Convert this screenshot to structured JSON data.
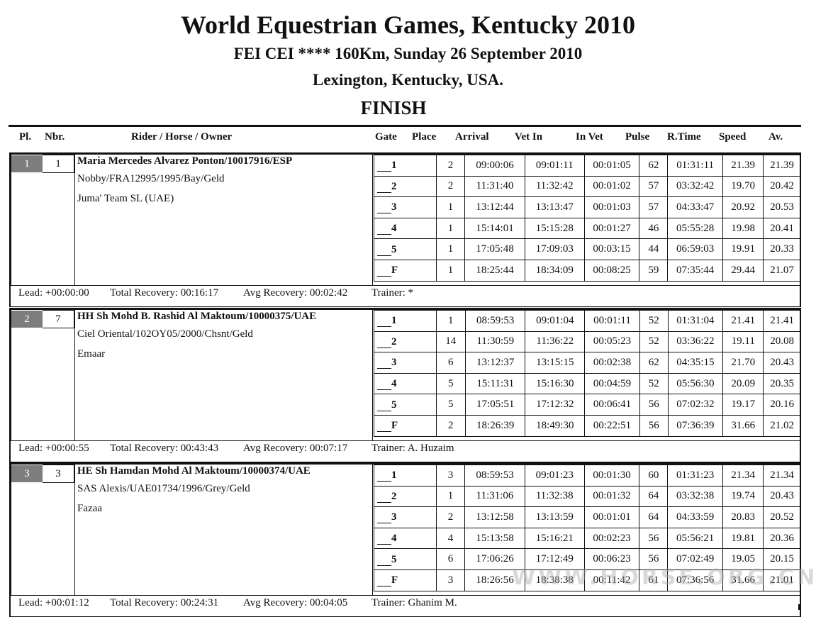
{
  "header": {
    "title": "World Equestrian Games, Kentucky 2010",
    "subtitle": "FEI CEI **** 160Km, Sunday 26 September 2010",
    "location": "Lexington, Kentucky, USA.",
    "section": "FINISH"
  },
  "columns": {
    "pl": "Pl.",
    "nbr": "Nbr.",
    "rider": "Rider / Horse / Owner",
    "gate": "Gate",
    "place": "Place",
    "arrival": "Arrival",
    "vet_in": "Vet In",
    "in_vet": "In Vet",
    "pulse": "Pulse",
    "rtime": "R.Time",
    "speed": "Speed",
    "av": "Av."
  },
  "entries": [
    {
      "pl": "1",
      "nbr": "1",
      "rider": "Maria Mercedes Alvarez Ponton/10017916/ESP",
      "horse": "Nobby/FRA12995/1995/Bay/Geld",
      "owner": "Juma' Team SL (UAE)",
      "gates": [
        {
          "gate": "1",
          "place": "2",
          "arrival": "09:00:06",
          "vet_in": "09:01:11",
          "in_vet": "00:01:05",
          "pulse": "62",
          "rtime": "01:31:11",
          "speed": "21.39",
          "av": "21.39"
        },
        {
          "gate": "2",
          "place": "2",
          "arrival": "11:31:40",
          "vet_in": "11:32:42",
          "in_vet": "00:01:02",
          "pulse": "57",
          "rtime": "03:32:42",
          "speed": "19.70",
          "av": "20.42"
        },
        {
          "gate": "3",
          "place": "1",
          "arrival": "13:12:44",
          "vet_in": "13:13:47",
          "in_vet": "00:01:03",
          "pulse": "57",
          "rtime": "04:33:47",
          "speed": "20.92",
          "av": "20.53"
        },
        {
          "gate": "4",
          "place": "1",
          "arrival": "15:14:01",
          "vet_in": "15:15:28",
          "in_vet": "00:01:27",
          "pulse": "46",
          "rtime": "05:55:28",
          "speed": "19.98",
          "av": "20.41"
        },
        {
          "gate": "5",
          "place": "1",
          "arrival": "17:05:48",
          "vet_in": "17:09:03",
          "in_vet": "00:03:15",
          "pulse": "44",
          "rtime": "06:59:03",
          "speed": "19.91",
          "av": "20.33"
        },
        {
          "gate": "F",
          "place": "1",
          "arrival": "18:25:44",
          "vet_in": "18:34:09",
          "in_vet": "00:08:25",
          "pulse": "59",
          "rtime": "07:35:44",
          "speed": "29.44",
          "av": "21.07"
        }
      ],
      "lead": "Lead: +00:00:00",
      "total_recovery": "Total Recovery: 00:16:17",
      "avg_recovery": "Avg Recovery: 00:02:42",
      "trainer": "Trainer: *"
    },
    {
      "pl": "2",
      "nbr": "7",
      "rider": "HH Sh Mohd B. Rashid Al Maktoum/10000375/UAE",
      "horse": "Ciel Oriental/102OY05/2000/Chsnt/Geld",
      "owner": "Emaar",
      "gates": [
        {
          "gate": "1",
          "place": "1",
          "arrival": "08:59:53",
          "vet_in": "09:01:04",
          "in_vet": "00:01:11",
          "pulse": "52",
          "rtime": "01:31:04",
          "speed": "21.41",
          "av": "21.41"
        },
        {
          "gate": "2",
          "place": "14",
          "arrival": "11:30:59",
          "vet_in": "11:36:22",
          "in_vet": "00:05:23",
          "pulse": "52",
          "rtime": "03:36:22",
          "speed": "19.11",
          "av": "20.08"
        },
        {
          "gate": "3",
          "place": "6",
          "arrival": "13:12:37",
          "vet_in": "13:15:15",
          "in_vet": "00:02:38",
          "pulse": "62",
          "rtime": "04:35:15",
          "speed": "21.70",
          "av": "20.43"
        },
        {
          "gate": "4",
          "place": "5",
          "arrival": "15:11:31",
          "vet_in": "15:16:30",
          "in_vet": "00:04:59",
          "pulse": "52",
          "rtime": "05:56:30",
          "speed": "20.09",
          "av": "20.35"
        },
        {
          "gate": "5",
          "place": "5",
          "arrival": "17:05:51",
          "vet_in": "17:12:32",
          "in_vet": "00:06:41",
          "pulse": "56",
          "rtime": "07:02:32",
          "speed": "19.17",
          "av": "20.16"
        },
        {
          "gate": "F",
          "place": "2",
          "arrival": "18:26:39",
          "vet_in": "18:49:30",
          "in_vet": "00:22:51",
          "pulse": "56",
          "rtime": "07:36:39",
          "speed": "31.66",
          "av": "21.02"
        }
      ],
      "lead": "Lead: +00:00:55",
      "total_recovery": "Total Recovery: 00:43:43",
      "avg_recovery": "Avg Recovery: 00:07:17",
      "trainer": "Trainer: A. Huzaim"
    },
    {
      "pl": "3",
      "nbr": "3",
      "rider": "HE Sh Hamdan Mohd Al Maktoum/10000374/UAE",
      "horse": "SAS Alexis/UAE01734/1996/Grey/Geld",
      "owner": "Fazaa",
      "gates": [
        {
          "gate": "1",
          "place": "3",
          "arrival": "08:59:53",
          "vet_in": "09:01:23",
          "in_vet": "00:01:30",
          "pulse": "60",
          "rtime": "01:31:23",
          "speed": "21.34",
          "av": "21.34"
        },
        {
          "gate": "2",
          "place": "1",
          "arrival": "11:31:06",
          "vet_in": "11:32:38",
          "in_vet": "00:01:32",
          "pulse": "64",
          "rtime": "03:32:38",
          "speed": "19.74",
          "av": "20.43"
        },
        {
          "gate": "3",
          "place": "2",
          "arrival": "13:12:58",
          "vet_in": "13:13:59",
          "in_vet": "00:01:01",
          "pulse": "64",
          "rtime": "04:33:59",
          "speed": "20.83",
          "av": "20.52"
        },
        {
          "gate": "4",
          "place": "4",
          "arrival": "15:13:58",
          "vet_in": "15:16:21",
          "in_vet": "00:02:23",
          "pulse": "56",
          "rtime": "05:56:21",
          "speed": "19.81",
          "av": "20.36"
        },
        {
          "gate": "5",
          "place": "6",
          "arrival": "17:06:26",
          "vet_in": "17:12:49",
          "in_vet": "00:06:23",
          "pulse": "56",
          "rtime": "07:02:49",
          "speed": "19.05",
          "av": "20.15"
        },
        {
          "gate": "F",
          "place": "3",
          "arrival": "18:26:56",
          "vet_in": "18:38:38",
          "in_vet": "00:11:42",
          "pulse": "61",
          "rtime": "07:36:56",
          "speed": "31.66",
          "av": "21.01"
        }
      ],
      "lead": "Lead: +00:01:12",
      "total_recovery": "Total Recovery: 00:24:31",
      "avg_recovery": "Avg Recovery: 00:04:05",
      "trainer": "Trainer: Ghanim M."
    }
  ],
  "watermark": "WWW.HORSE.ORG.CN"
}
